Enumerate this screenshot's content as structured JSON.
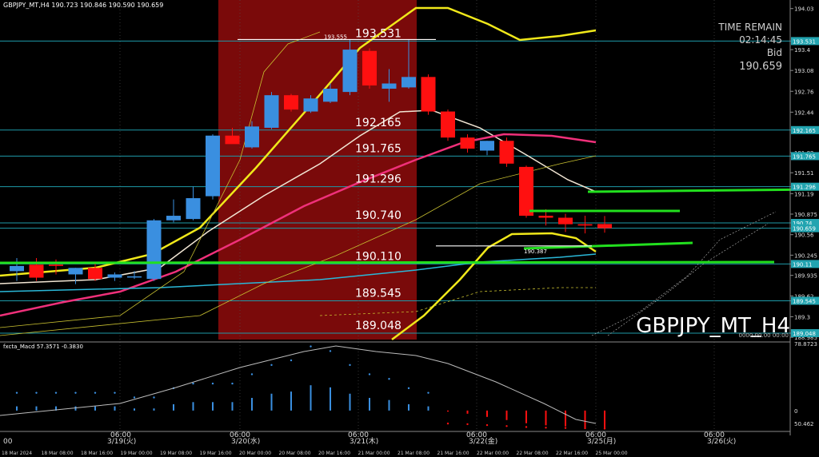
{
  "header": {
    "symbol_info": "GBPJPY_MT,H4  190.723 190.846 190.590 190.659",
    "indicator_label": "fxcta_Macd 57.3571 -0.3830"
  },
  "info_panel": {
    "time_remain_label": "TIME REMAIN",
    "time_remain_value": "02:14:45",
    "bid_label": "Bid",
    "bid_value": "190.659"
  },
  "watermark": "GBPJPY_MT_H4",
  "corner_text": "0000.00.00 00:00",
  "colors": {
    "bull": "#3a8fe0",
    "bear": "#ff1010",
    "session_bg": "#7a0a0a",
    "hline": "#1e9aa8",
    "green": "#22e01e",
    "yellow": "#f0e81a",
    "magenta": "#f0307a",
    "white_ma": "#f2e6d4",
    "cyan_ma": "#2ab8d8"
  },
  "chart_data": {
    "type": "candlestick",
    "symbol": "GBPJPY_MT",
    "timeframe": "H4",
    "ylim": [
      188.95,
      194.1
    ],
    "y_ticks": [
      194.03,
      193.4,
      193.08,
      192.76,
      192.44,
      191.82,
      191.51,
      191.19,
      190.875,
      190.56,
      190.245,
      189.935,
      189.62,
      189.3,
      188.985
    ],
    "highlighted_levels": [
      193.531,
      192.165,
      191.765,
      191.296,
      190.74,
      190.659,
      190.11,
      189.545,
      189.048
    ],
    "level_labels": [
      "193.531",
      "192.165",
      "191.765",
      "191.296",
      "190.740",
      "190.110",
      "189.545",
      "189.048"
    ],
    "annotations": [
      {
        "text": "193.555",
        "value": 193.555
      },
      {
        "text": "190.387",
        "value": 190.387
      }
    ],
    "candles": [
      {
        "o": 190.0,
        "h": 190.2,
        "l": 189.85,
        "c": 190.08
      },
      {
        "o": 190.1,
        "h": 190.2,
        "l": 189.85,
        "c": 189.9
      },
      {
        "o": 190.1,
        "h": 190.18,
        "l": 189.95,
        "c": 190.08
      },
      {
        "o": 189.95,
        "h": 190.05,
        "l": 189.8,
        "c": 190.05
      },
      {
        "o": 190.05,
        "h": 190.12,
        "l": 189.85,
        "c": 189.88
      },
      {
        "o": 189.9,
        "h": 189.98,
        "l": 189.85,
        "c": 189.95
      },
      {
        "o": 189.92,
        "h": 190.0,
        "l": 189.88,
        "c": 189.92
      },
      {
        "o": 189.88,
        "h": 190.8,
        "l": 189.85,
        "c": 190.78
      },
      {
        "o": 190.78,
        "h": 191.1,
        "l": 190.75,
        "c": 190.85
      },
      {
        "o": 190.8,
        "h": 191.3,
        "l": 190.78,
        "c": 191.12
      },
      {
        "o": 191.15,
        "h": 192.1,
        "l": 191.1,
        "c": 192.08
      },
      {
        "o": 192.08,
        "h": 192.2,
        "l": 191.98,
        "c": 191.95
      },
      {
        "o": 191.9,
        "h": 192.3,
        "l": 191.88,
        "c": 192.22
      },
      {
        "o": 192.2,
        "h": 192.75,
        "l": 192.18,
        "c": 192.7
      },
      {
        "o": 192.7,
        "h": 192.72,
        "l": 192.45,
        "c": 192.48
      },
      {
        "o": 192.45,
        "h": 192.7,
        "l": 192.43,
        "c": 192.65
      },
      {
        "o": 192.6,
        "h": 192.88,
        "l": 192.58,
        "c": 192.8
      },
      {
        "o": 192.75,
        "h": 193.55,
        "l": 192.7,
        "c": 193.4
      },
      {
        "o": 193.38,
        "h": 193.42,
        "l": 192.8,
        "c": 192.85
      },
      {
        "o": 192.8,
        "h": 193.1,
        "l": 192.6,
        "c": 192.88
      },
      {
        "o": 192.82,
        "h": 193.55,
        "l": 192.8,
        "c": 192.98
      },
      {
        "o": 192.98,
        "h": 193.02,
        "l": 192.4,
        "c": 192.45
      },
      {
        "o": 192.45,
        "h": 192.48,
        "l": 192.0,
        "c": 192.05
      },
      {
        "o": 192.05,
        "h": 192.1,
        "l": 191.82,
        "c": 191.88
      },
      {
        "o": 191.85,
        "h": 192.0,
        "l": 191.78,
        "c": 192.0
      },
      {
        "o": 192.0,
        "h": 192.05,
        "l": 191.6,
        "c": 191.65
      },
      {
        "o": 191.6,
        "h": 191.62,
        "l": 190.82,
        "c": 190.85
      },
      {
        "o": 190.85,
        "h": 190.95,
        "l": 190.7,
        "c": 190.82
      },
      {
        "o": 190.82,
        "h": 190.88,
        "l": 190.6,
        "c": 190.72
      },
      {
        "o": 190.72,
        "h": 190.85,
        "l": 190.58,
        "c": 190.7
      },
      {
        "o": 190.723,
        "h": 190.846,
        "l": 190.59,
        "c": 190.659
      }
    ],
    "indicator": {
      "name": "fxcta_Macd",
      "ylim": [
        -8,
        31
      ],
      "y_ticks": [
        "78.8723",
        "0",
        "50.462"
      ],
      "bars": [
        2,
        2,
        2,
        2,
        2,
        2,
        1,
        1,
        3,
        4,
        4,
        4,
        6,
        8,
        9,
        12,
        11,
        8,
        6,
        5,
        3,
        2,
        -0.5,
        -1.5,
        -3,
        -4.5,
        -6,
        -7,
        -7.5,
        -8,
        -8.5
      ]
    },
    "x_ticks_top": [
      "00",
      "3/19(火)",
      "3/20(水)",
      "3/21(木)",
      "3/22(金)",
      "3/25(月)",
      "3/26(火)"
    ],
    "x_ticks_bottom": [
      "18 Mar 2024",
      "18 Mar 08:00",
      "18 Mar 16:00",
      "19 Mar 00:00",
      "19 Mar 08:00",
      "19 Mar 16:00",
      "20 Mar 00:00",
      "20 Mar 08:00",
      "20 Mar 16:00",
      "21 Mar 00:00",
      "21 Mar 08:00",
      "21 Mar 16:00",
      "22 Mar 00:00",
      "22 Mar 08:00",
      "22 Mar 16:00",
      "25 Mar 00:00"
    ],
    "x_ticks_mid": [
      "06:00",
      "06:00",
      "06:00",
      "06:00",
      "06:00",
      "06:00"
    ]
  }
}
